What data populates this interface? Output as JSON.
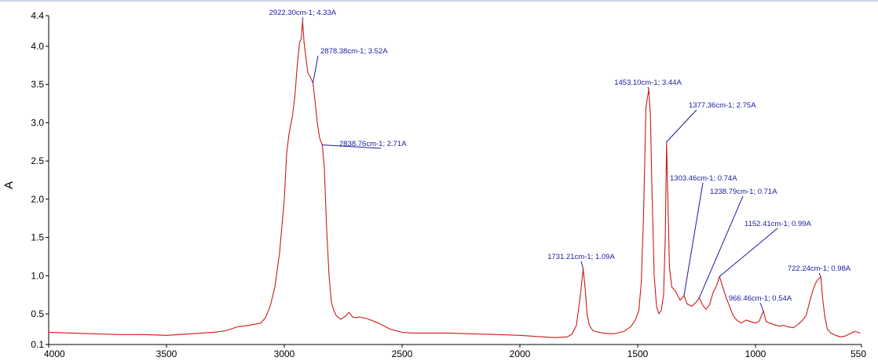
{
  "chart_data": {
    "type": "line",
    "title": "",
    "xlabel": "",
    "ylabel": "A",
    "xlim": [
      4000,
      550
    ],
    "ylim": [
      0.1,
      4.4
    ],
    "x_reversed": true,
    "grid": false,
    "colors": {
      "line": "#cc1a1a",
      "annotation": "#1a1aa6",
      "axis": "#000000"
    },
    "x_ticks": [
      4000,
      3500,
      3000,
      2500,
      2000,
      1500,
      1000,
      550
    ],
    "y_ticks": [
      {
        "value": 0.1,
        "label": "0.1"
      },
      {
        "value": 0.5,
        "label": "0.5"
      },
      {
        "value": 1.0,
        "label": "1.0"
      },
      {
        "value": 1.5,
        "label": "1.5"
      },
      {
        "value": 2.0,
        "label": "2.0"
      },
      {
        "value": 2.5,
        "label": "2.5"
      },
      {
        "value": 3.0,
        "label": "3.0"
      },
      {
        "value": 3.5,
        "label": "3.5"
      },
      {
        "value": 4.0,
        "label": "4.0"
      },
      {
        "value": 4.4,
        "label": "4.4"
      }
    ],
    "series": [
      {
        "points": [
          [
            4000,
            0.26
          ],
          [
            3900,
            0.25
          ],
          [
            3800,
            0.24
          ],
          [
            3700,
            0.23
          ],
          [
            3600,
            0.23
          ],
          [
            3500,
            0.22
          ],
          [
            3400,
            0.24
          ],
          [
            3300,
            0.26
          ],
          [
            3250,
            0.28
          ],
          [
            3200,
            0.33
          ],
          [
            3150,
            0.35
          ],
          [
            3100,
            0.38
          ],
          [
            3080,
            0.45
          ],
          [
            3060,
            0.6
          ],
          [
            3040,
            0.85
          ],
          [
            3020,
            1.3
          ],
          [
            3000,
            2.0
          ],
          [
            2990,
            2.6
          ],
          [
            2980,
            2.85
          ],
          [
            2965,
            3.1
          ],
          [
            2955,
            3.35
          ],
          [
            2945,
            3.75
          ],
          [
            2935,
            4.05
          ],
          [
            2928,
            4.1
          ],
          [
            2922.3,
            4.33
          ],
          [
            2916,
            4.05
          ],
          [
            2910,
            3.9
          ],
          [
            2900,
            3.65
          ],
          [
            2890,
            3.6
          ],
          [
            2878.38,
            3.52
          ],
          [
            2870,
            3.3
          ],
          [
            2860,
            3.0
          ],
          [
            2850,
            2.8
          ],
          [
            2838.76,
            2.71
          ],
          [
            2830,
            2.4
          ],
          [
            2820,
            1.6
          ],
          [
            2810,
            1.0
          ],
          [
            2800,
            0.65
          ],
          [
            2790,
            0.55
          ],
          [
            2780,
            0.48
          ],
          [
            2760,
            0.43
          ],
          [
            2740,
            0.47
          ],
          [
            2725,
            0.52
          ],
          [
            2710,
            0.46
          ],
          [
            2700,
            0.45
          ],
          [
            2680,
            0.46
          ],
          [
            2650,
            0.44
          ],
          [
            2600,
            0.38
          ],
          [
            2550,
            0.3
          ],
          [
            2500,
            0.26
          ],
          [
            2450,
            0.25
          ],
          [
            2400,
            0.25
          ],
          [
            2300,
            0.25
          ],
          [
            2200,
            0.24
          ],
          [
            2100,
            0.23
          ],
          [
            2000,
            0.22
          ],
          [
            1900,
            0.2
          ],
          [
            1850,
            0.19
          ],
          [
            1800,
            0.2
          ],
          [
            1780,
            0.23
          ],
          [
            1760,
            0.35
          ],
          [
            1745,
            0.7
          ],
          [
            1731.21,
            1.09
          ],
          [
            1722,
            0.8
          ],
          [
            1715,
            0.5
          ],
          [
            1705,
            0.35
          ],
          [
            1690,
            0.28
          ],
          [
            1650,
            0.25
          ],
          [
            1600,
            0.24
          ],
          [
            1560,
            0.27
          ],
          [
            1530,
            0.33
          ],
          [
            1510,
            0.42
          ],
          [
            1495,
            0.55
          ],
          [
            1485,
            0.9
          ],
          [
            1475,
            1.8
          ],
          [
            1465,
            3.2
          ],
          [
            1460,
            3.3
          ],
          [
            1453.1,
            3.44
          ],
          [
            1446,
            3.1
          ],
          [
            1440,
            2.2
          ],
          [
            1430,
            1.0
          ],
          [
            1420,
            0.6
          ],
          [
            1410,
            0.5
          ],
          [
            1400,
            0.55
          ],
          [
            1390,
            0.75
          ],
          [
            1383,
            1.5
          ],
          [
            1377.36,
            2.75
          ],
          [
            1372,
            2.0
          ],
          [
            1365,
            1.1
          ],
          [
            1355,
            0.85
          ],
          [
            1340,
            0.8
          ],
          [
            1320,
            0.68
          ],
          [
            1303.46,
            0.74
          ],
          [
            1290,
            0.63
          ],
          [
            1270,
            0.6
          ],
          [
            1250,
            0.66
          ],
          [
            1238.79,
            0.71
          ],
          [
            1225,
            0.62
          ],
          [
            1210,
            0.56
          ],
          [
            1195,
            0.62
          ],
          [
            1180,
            0.78
          ],
          [
            1165,
            0.87
          ],
          [
            1152.41,
            0.99
          ],
          [
            1140,
            0.86
          ],
          [
            1125,
            0.72
          ],
          [
            1110,
            0.6
          ],
          [
            1095,
            0.48
          ],
          [
            1080,
            0.42
          ],
          [
            1060,
            0.38
          ],
          [
            1040,
            0.42
          ],
          [
            1020,
            0.4
          ],
          [
            1000,
            0.38
          ],
          [
            985,
            0.4
          ],
          [
            966.46,
            0.54
          ],
          [
            955,
            0.4
          ],
          [
            940,
            0.38
          ],
          [
            920,
            0.36
          ],
          [
            900,
            0.34
          ],
          [
            880,
            0.35
          ],
          [
            860,
            0.33
          ],
          [
            840,
            0.32
          ],
          [
            820,
            0.36
          ],
          [
            800,
            0.42
          ],
          [
            785,
            0.48
          ],
          [
            775,
            0.6
          ],
          [
            765,
            0.72
          ],
          [
            755,
            0.82
          ],
          [
            745,
            0.9
          ],
          [
            735,
            0.95
          ],
          [
            722.24,
            0.98
          ],
          [
            715,
            0.7
          ],
          [
            705,
            0.45
          ],
          [
            695,
            0.3
          ],
          [
            680,
            0.25
          ],
          [
            660,
            0.22
          ],
          [
            640,
            0.2
          ],
          [
            620,
            0.21
          ],
          [
            600,
            0.24
          ],
          [
            580,
            0.27
          ],
          [
            565,
            0.26
          ],
          [
            555,
            0.25
          ]
        ]
      }
    ],
    "annotations": [
      {
        "x": 2922.3,
        "y": 4.33,
        "text": "2922.30cm-1; 4.33A"
      },
      {
        "x": 2878.38,
        "y": 3.52,
        "text": "2878.38cm-1; 3.52A"
      },
      {
        "x": 2838.76,
        "y": 2.71,
        "text": "2838.76cm-1; 2.71A"
      },
      {
        "x": 1731.21,
        "y": 1.09,
        "text": "1731.21cm-1; 1.09A"
      },
      {
        "x": 1453.1,
        "y": 3.44,
        "text": "1453.10cm-1; 3.44A"
      },
      {
        "x": 1377.36,
        "y": 2.75,
        "text": "1377.36cm-1; 2.75A"
      },
      {
        "x": 1303.46,
        "y": 0.74,
        "text": "1303.46cm-1; 0.74A"
      },
      {
        "x": 1238.79,
        "y": 0.71,
        "text": "1238.79cm-1; 0.71A"
      },
      {
        "x": 1152.41,
        "y": 0.99,
        "text": "1152.41cm-1; 0.99A"
      },
      {
        "x": 966.46,
        "y": 0.54,
        "text": "966.46cm-1; 0.54A"
      },
      {
        "x": 722.24,
        "y": 0.98,
        "text": "722.24cm-1; 0.98A"
      }
    ]
  }
}
